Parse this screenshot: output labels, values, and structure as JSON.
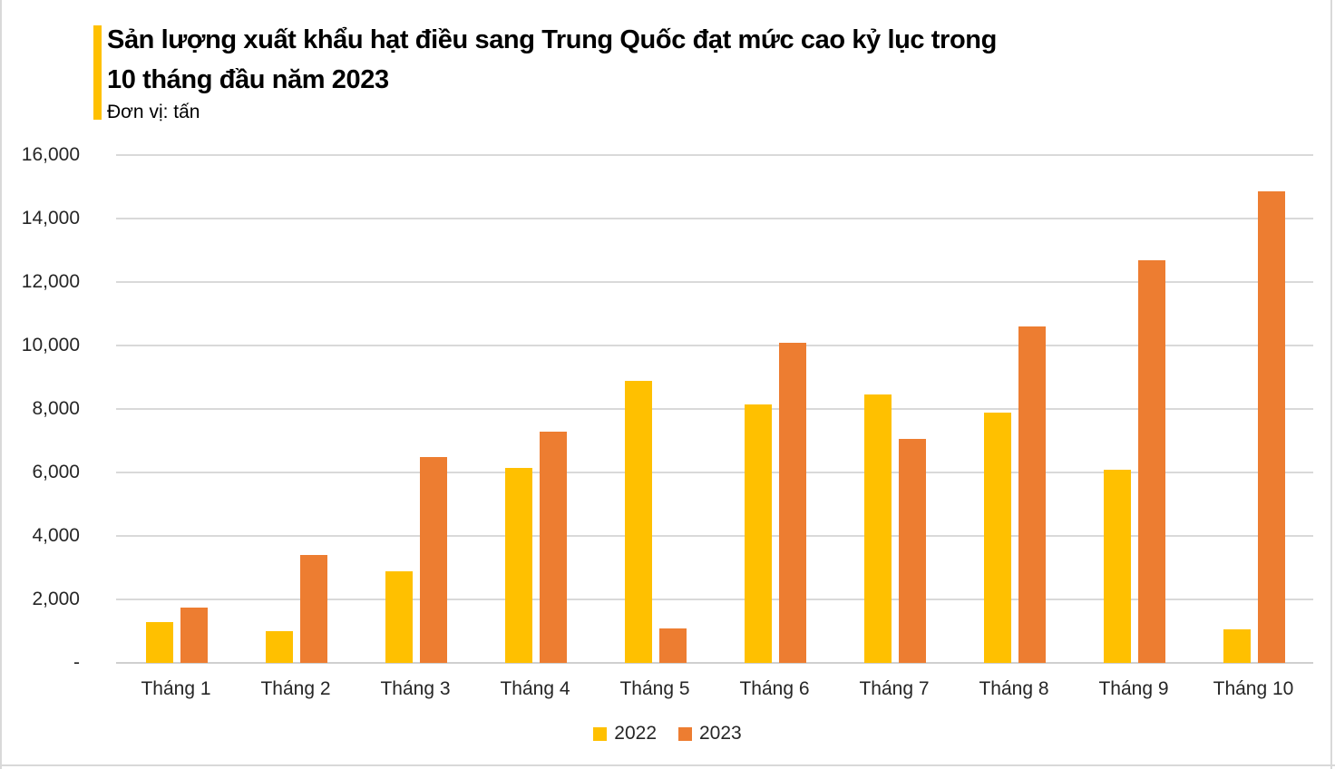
{
  "header": {
    "title": "Sản lượng xuất khẩu hạt điều sang Trung Quốc đạt mức cao kỷ lục trong 10 tháng đầu năm 2023",
    "title_lines": [
      "Sản lượng xuất khẩu hạt điều sang Trung Quốc đạt mức cao kỷ lục trong",
      "10 tháng đầu năm 2023"
    ],
    "unit": "Đơn vị: tấn"
  },
  "colors": {
    "accent_bar": "#FFC000",
    "series_2022": "#FFC000",
    "series_2023": "#ED7D31",
    "gridline": "#D9D9D9",
    "axis_line": "#CFCFCF",
    "axis_text": "#262626",
    "frame_border": "#D9D9D9"
  },
  "chart_data": {
    "type": "bar",
    "title": "Sản lượng xuất khẩu hạt điều sang Trung Quốc đạt mức cao kỷ lục trong 10 tháng đầu năm 2023",
    "unit_label": "Đơn vị: tấn",
    "categories": [
      "Tháng 1",
      "Tháng 2",
      "Tháng 3",
      "Tháng 4",
      "Tháng 5",
      "Tháng 6",
      "Tháng 7",
      "Tháng 8",
      "Tháng 9",
      "Tháng 10"
    ],
    "series": [
      {
        "name": "2022",
        "color": "#FFC000",
        "values": [
          1300,
          1000,
          2900,
          6150,
          8900,
          8150,
          8450,
          7900,
          6100,
          1050
        ]
      },
      {
        "name": "2023",
        "color": "#ED7D31",
        "values": [
          1750,
          3400,
          6500,
          7300,
          1100,
          10100,
          7050,
          10600,
          12700,
          14850
        ]
      }
    ],
    "xlabel": "",
    "ylabel": "",
    "ylim": [
      0,
      16000
    ],
    "ytick_interval": 2000,
    "ytick_labels_bottom_to_top": [
      "-",
      "2,000",
      "4,000",
      "6,000",
      "8,000",
      "10,000",
      "12,000",
      "14,000",
      "16,000"
    ],
    "grid": true,
    "legend_position": "bottom",
    "legend": [
      "2022",
      "2023"
    ]
  }
}
